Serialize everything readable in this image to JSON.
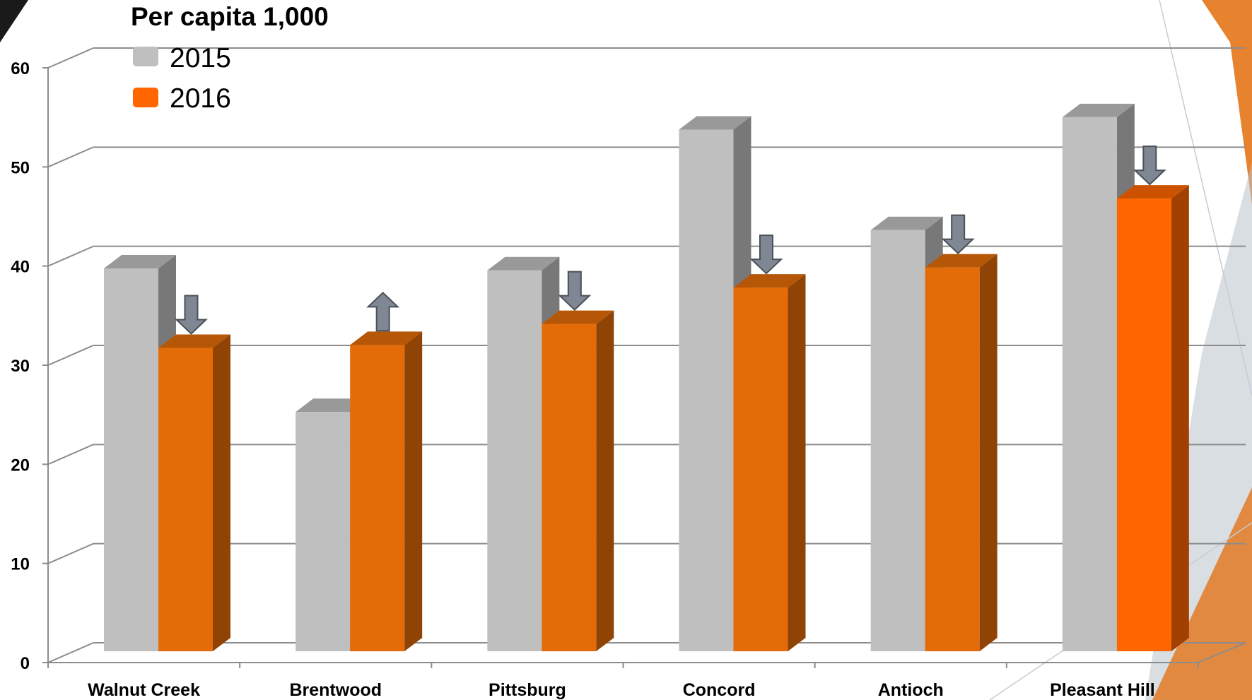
{
  "chart_data": {
    "type": "bar",
    "title": "Per capita 1,000",
    "categories": [
      "Walnut Creek",
      "Brentwood",
      "Pittsburg",
      "Concord",
      "Antioch",
      "Pleasant Hill"
    ],
    "series": [
      {
        "name": "2015",
        "values": [
          40,
          25,
          39.8,
          54.5,
          44,
          55.8
        ],
        "color": "#bfbfbf"
      },
      {
        "name": "2016",
        "values": [
          31.7,
          32,
          34.2,
          38,
          40.1,
          47.3
        ],
        "color": "#e36c09"
      }
    ],
    "highlight_color": "#ff6600",
    "change_arrows": [
      "down",
      "up",
      "down",
      "down",
      "down",
      "down"
    ],
    "arrow_color": "#7f8792",
    "y_ticks": [
      "0",
      "10",
      "20",
      "30",
      "40",
      "50",
      "60"
    ],
    "ylim": [
      0,
      60
    ],
    "grid": true,
    "legend_position": "top-left",
    "xlabel": "",
    "ylabel": ""
  }
}
